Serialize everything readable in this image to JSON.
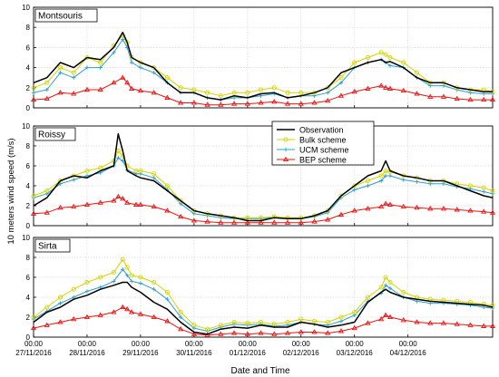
{
  "figure": {
    "ylabel": "10 meters wind speed (m/s)",
    "xlabel": "Date and Time"
  },
  "colors": {
    "Observation": "#000000",
    "Bulk scheme": "#d4d400",
    "UCM scheme": "#2ea0cc",
    "BEP scheme": "#ee1111"
  },
  "chart_data": [
    {
      "type": "line",
      "panel_label": "Montsouris",
      "x_unit": "hours from 27/11/2016 00:00",
      "xlim": [
        0,
        206
      ],
      "ylim": [
        0,
        10
      ],
      "yticks": [
        0,
        2,
        4,
        6,
        8,
        10
      ],
      "xticks": [
        {
          "time": "00:00",
          "date": "27/11/2016",
          "x": 0
        },
        {
          "time": "00:00",
          "date": "28/11/2016",
          "x": 24
        },
        {
          "time": "00:00",
          "date": "29/11/2016",
          "x": 48
        },
        {
          "time": "00:00",
          "date": "30/11/2016",
          "x": 72
        },
        {
          "time": "00:00",
          "date": "01/12/2016",
          "x": 96
        },
        {
          "time": "00:00",
          "date": "02/12/2016",
          "x": 120
        },
        {
          "time": "00:00",
          "date": "03/12/2016",
          "x": 144
        },
        {
          "time": "00:00",
          "date": "04/12/2016",
          "x": 168
        }
      ],
      "grid": true,
      "legend": false,
      "x": [
        0,
        6,
        12,
        18,
        24,
        30,
        36,
        40,
        42,
        44,
        48,
        54,
        60,
        66,
        72,
        78,
        84,
        90,
        96,
        102,
        108,
        114,
        120,
        126,
        132,
        138,
        144,
        150,
        156,
        158,
        160,
        166,
        172,
        178,
        184,
        190,
        196,
        202,
        206
      ],
      "series": [
        {
          "name": "Observation",
          "values": [
            2.5,
            3.0,
            4.5,
            4.0,
            5.0,
            4.8,
            6.0,
            7.5,
            6.5,
            5.0,
            4.5,
            4.0,
            2.5,
            1.5,
            1.5,
            1.0,
            0.8,
            1.2,
            1.0,
            1.4,
            1.5,
            1.0,
            1.2,
            1.5,
            2.0,
            3.5,
            4.0,
            4.5,
            4.8,
            4.5,
            4.6,
            4.0,
            3.0,
            2.5,
            2.5,
            2.0,
            1.8,
            1.6,
            1.6
          ]
        },
        {
          "name": "Bulk scheme",
          "values": [
            2.0,
            2.5,
            4.0,
            3.5,
            5.0,
            4.5,
            6.2,
            7.2,
            6.5,
            5.0,
            4.5,
            4.0,
            3.0,
            2.0,
            1.8,
            1.5,
            1.2,
            1.5,
            1.5,
            1.8,
            2.0,
            1.5,
            1.5,
            1.5,
            2.0,
            3.0,
            4.5,
            5.0,
            5.5,
            5.3,
            5.0,
            4.5,
            3.5,
            2.5,
            2.5,
            2.0,
            1.8,
            1.8,
            1.6
          ]
        },
        {
          "name": "UCM scheme",
          "values": [
            1.5,
            1.8,
            3.5,
            3.0,
            4.0,
            4.0,
            5.5,
            6.8,
            6.0,
            4.5,
            4.0,
            3.5,
            2.5,
            1.5,
            1.5,
            1.0,
            0.8,
            1.0,
            1.0,
            1.2,
            1.4,
            1.0,
            1.2,
            1.2,
            1.5,
            2.5,
            4.0,
            4.5,
            4.8,
            4.5,
            4.2,
            4.0,
            3.0,
            2.2,
            2.2,
            1.8,
            1.5,
            1.4,
            1.4
          ]
        },
        {
          "name": "BEP scheme",
          "values": [
            0.8,
            0.9,
            1.5,
            1.4,
            1.8,
            1.8,
            2.5,
            3.0,
            2.5,
            1.9,
            1.7,
            1.5,
            1.0,
            0.5,
            0.5,
            0.3,
            0.3,
            0.4,
            0.4,
            0.5,
            0.6,
            0.4,
            0.4,
            0.5,
            0.7,
            1.2,
            1.6,
            1.9,
            2.2,
            2.0,
            1.9,
            1.7,
            1.4,
            1.1,
            1.1,
            0.9,
            0.8,
            0.8,
            0.8
          ]
        }
      ]
    },
    {
      "type": "line",
      "panel_label": "Roissy",
      "x_unit": "hours from 27/11/2016 00:00",
      "xlim": [
        0,
        206
      ],
      "ylim": [
        0,
        10
      ],
      "yticks": [
        0,
        2,
        4,
        6,
        8,
        10
      ],
      "grid": true,
      "legend": true,
      "legend_position": "top-center",
      "x": [
        0,
        6,
        12,
        18,
        24,
        30,
        36,
        38,
        40,
        42,
        46,
        48,
        54,
        60,
        66,
        72,
        78,
        84,
        90,
        96,
        102,
        108,
        114,
        120,
        126,
        132,
        138,
        144,
        150,
        156,
        158,
        160,
        166,
        172,
        178,
        184,
        190,
        196,
        202,
        206
      ],
      "series": [
        {
          "name": "Observation",
          "values": [
            2.0,
            2.8,
            4.5,
            5.0,
            4.8,
            5.5,
            6.0,
            9.2,
            7.5,
            5.5,
            5.0,
            4.8,
            4.5,
            3.5,
            2.5,
            1.5,
            1.2,
            1.0,
            0.8,
            0.5,
            0.5,
            0.8,
            0.7,
            0.7,
            1.0,
            1.5,
            3.0,
            4.0,
            5.0,
            5.5,
            6.5,
            5.5,
            5.0,
            4.8,
            4.5,
            4.5,
            4.0,
            3.5,
            3.0,
            2.8
          ]
        },
        {
          "name": "Bulk scheme",
          "values": [
            3.0,
            3.5,
            4.5,
            5.0,
            5.5,
            5.8,
            6.5,
            7.5,
            7.0,
            6.0,
            5.5,
            5.5,
            5.2,
            4.0,
            2.5,
            1.5,
            1.2,
            1.0,
            0.8,
            0.8,
            0.8,
            0.9,
            0.8,
            0.8,
            1.0,
            1.5,
            3.0,
            4.0,
            4.5,
            5.0,
            5.5,
            5.4,
            5.0,
            4.8,
            4.5,
            4.5,
            4.2,
            4.0,
            3.8,
            3.5
          ]
        },
        {
          "name": "UCM scheme",
          "values": [
            2.8,
            3.2,
            4.2,
            4.6,
            5.0,
            5.3,
            6.0,
            6.8,
            6.5,
            5.6,
            5.2,
            5.2,
            4.8,
            3.6,
            2.2,
            1.2,
            1.0,
            0.8,
            0.7,
            0.7,
            0.7,
            0.8,
            0.7,
            0.7,
            0.9,
            1.3,
            2.8,
            3.6,
            4.0,
            4.5,
            5.0,
            5.0,
            4.6,
            4.4,
            4.2,
            4.2,
            3.9,
            3.7,
            3.4,
            3.2
          ]
        },
        {
          "name": "BEP scheme",
          "values": [
            1.2,
            1.3,
            1.8,
            1.9,
            2.1,
            2.3,
            2.5,
            2.9,
            2.7,
            2.3,
            2.1,
            2.1,
            1.9,
            1.5,
            0.9,
            0.5,
            0.4,
            0.3,
            0.3,
            0.3,
            0.3,
            0.3,
            0.3,
            0.3,
            0.4,
            0.6,
            1.1,
            1.5,
            1.7,
            1.9,
            2.2,
            2.1,
            1.9,
            1.8,
            1.7,
            1.7,
            1.6,
            1.5,
            1.4,
            1.3
          ]
        }
      ]
    },
    {
      "type": "line",
      "panel_label": "Sirta",
      "x_unit": "hours from 27/11/2016 00:00",
      "xlim": [
        0,
        206
      ],
      "ylim": [
        0,
        10
      ],
      "yticks": [
        0,
        2,
        4,
        6,
        8,
        10
      ],
      "grid": true,
      "legend": false,
      "x": [
        0,
        6,
        12,
        18,
        24,
        30,
        36,
        40,
        42,
        44,
        48,
        54,
        60,
        66,
        72,
        78,
        84,
        90,
        96,
        102,
        108,
        114,
        120,
        126,
        132,
        138,
        144,
        150,
        156,
        158,
        160,
        166,
        172,
        178,
        184,
        190,
        196,
        202,
        206
      ],
      "series": [
        {
          "name": "Observation",
          "values": [
            1.5,
            2.5,
            3.0,
            3.8,
            4.2,
            4.8,
            5.2,
            5.5,
            5.5,
            5.0,
            4.5,
            3.5,
            2.8,
            1.5,
            0.5,
            0.3,
            0.8,
            1.0,
            0.9,
            1.2,
            1.0,
            1.0,
            1.5,
            1.3,
            1.0,
            1.2,
            1.5,
            3.5,
            4.5,
            4.8,
            4.5,
            4.0,
            3.8,
            3.6,
            3.5,
            3.4,
            3.3,
            3.2,
            3.0
          ]
        },
        {
          "name": "Bulk scheme",
          "values": [
            2.0,
            3.0,
            4.0,
            4.8,
            5.5,
            6.0,
            6.5,
            7.8,
            7.0,
            6.2,
            6.0,
            5.5,
            4.5,
            2.5,
            1.2,
            0.8,
            1.2,
            1.5,
            1.4,
            1.5,
            1.3,
            1.5,
            1.8,
            1.6,
            1.5,
            2.0,
            2.5,
            4.0,
            5.0,
            6.0,
            5.5,
            4.5,
            4.0,
            3.8,
            3.7,
            3.6,
            3.5,
            3.3,
            3.2
          ]
        },
        {
          "name": "UCM scheme",
          "values": [
            1.8,
            2.6,
            3.4,
            4.0,
            4.6,
            5.0,
            5.6,
            6.8,
            6.2,
            5.6,
            5.4,
            4.8,
            3.8,
            2.0,
            0.9,
            0.6,
            1.0,
            1.3,
            1.2,
            1.3,
            1.1,
            1.2,
            1.5,
            1.3,
            1.2,
            1.6,
            2.2,
            3.6,
            4.4,
            5.2,
            4.9,
            4.0,
            3.6,
            3.4,
            3.4,
            3.3,
            3.2,
            3.0,
            2.9
          ]
        },
        {
          "name": "BEP scheme",
          "values": [
            0.9,
            1.2,
            1.5,
            1.8,
            2.0,
            2.2,
            2.5,
            3.0,
            2.8,
            2.5,
            2.3,
            2.0,
            1.6,
            0.8,
            0.3,
            0.2,
            0.3,
            0.4,
            0.3,
            0.4,
            0.3,
            0.4,
            0.5,
            0.5,
            0.4,
            0.6,
            0.9,
            1.4,
            1.8,
            2.2,
            2.0,
            1.7,
            1.5,
            1.4,
            1.4,
            1.3,
            1.2,
            1.1,
            1.1
          ]
        }
      ]
    }
  ]
}
